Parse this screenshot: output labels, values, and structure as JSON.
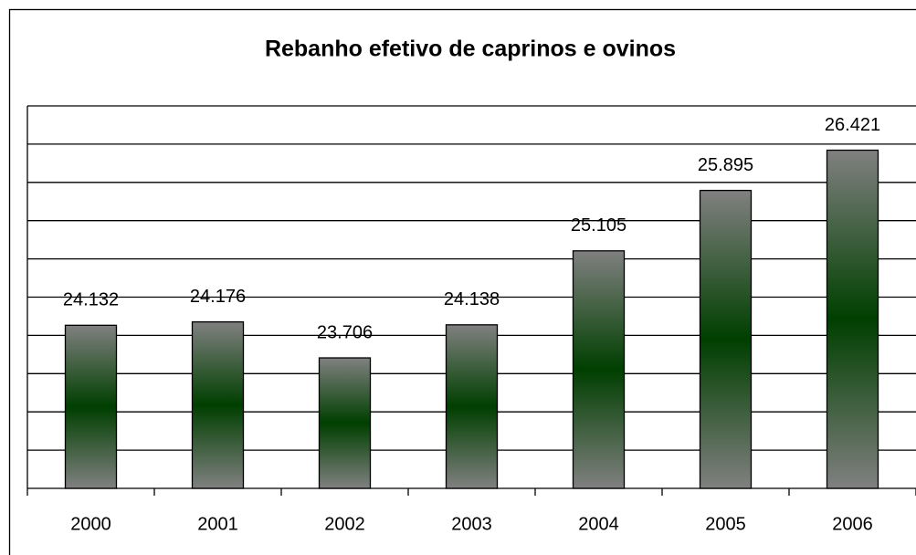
{
  "chart_data": {
    "type": "bar",
    "title": "Rebanho efetivo de caprinos e ovinos",
    "categories": [
      "2000",
      "2001",
      "2002",
      "2003",
      "2004",
      "2005",
      "2006"
    ],
    "values": [
      24132,
      24176,
      23706,
      24138,
      25105,
      25895,
      26421
    ],
    "value_labels": [
      "24.132",
      "24.176",
      "23.706",
      "24.138",
      "25.105",
      "25.895",
      "26.421"
    ],
    "color": "#808080",
    "gradient_color": "#003f00",
    "ylim": [
      22000,
      27000
    ],
    "yticks": [
      22000,
      22500,
      23000,
      23500,
      24000,
      24500,
      25000,
      25500,
      26000,
      26500,
      27000
    ],
    "grid": true
  }
}
